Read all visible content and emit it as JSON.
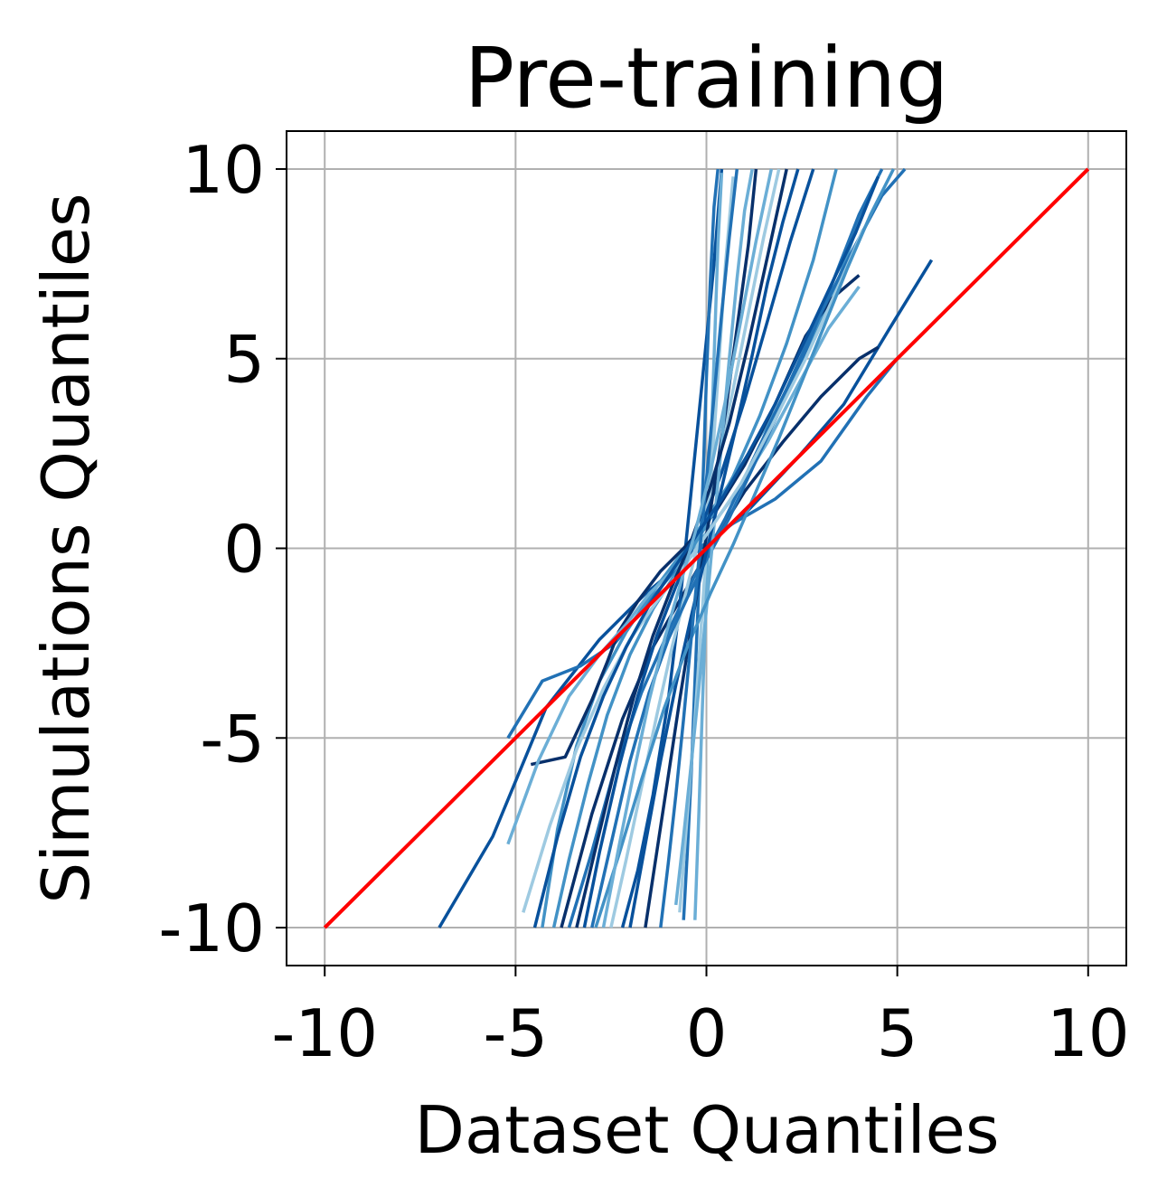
{
  "chart_data": {
    "type": "line",
    "title": "Pre-training",
    "xlabel": "Dataset Quantiles",
    "ylabel": "Simulations Quantiles",
    "xlim": [
      -11,
      11
    ],
    "ylim": [
      -11,
      11
    ],
    "xticks": [
      -10,
      -5,
      0,
      5,
      10
    ],
    "yticks": [
      -10,
      -5,
      0,
      5,
      10
    ],
    "xtick_labels": [
      "-10",
      "-5",
      "0",
      "5",
      "10"
    ],
    "ytick_labels": [
      "-10",
      "-5",
      "0",
      "5",
      "10"
    ],
    "grid": true,
    "legend": "none",
    "reference_line": {
      "x": [
        -10,
        10
      ],
      "y": [
        -10,
        10
      ],
      "color": "#ff0000"
    },
    "palette": [
      "#08306b",
      "#08519c",
      "#2171b5",
      "#4292c6",
      "#6baed6",
      "#9ecae1"
    ],
    "series": [
      {
        "color": "#08519c",
        "x": [
          -7.0,
          -5.6,
          -4.2,
          -2.8,
          -1.6,
          -0.4,
          1.0,
          2.4,
          3.6,
          4.8,
          5.9
        ],
        "y": [
          -10,
          -7.6,
          -4.2,
          -2.4,
          -1.2,
          -0.2,
          0.9,
          2.4,
          3.8,
          5.8,
          7.6
        ]
      },
      {
        "color": "#2171b5",
        "x": [
          -5.2,
          -4.3,
          -3.3,
          -2.4,
          -1.5,
          -0.6,
          0.6,
          1.8,
          3.0,
          4.2,
          5.0
        ],
        "y": [
          -5.0,
          -3.5,
          -3.1,
          -2.5,
          -1.4,
          -0.3,
          0.6,
          1.3,
          2.3,
          4.0,
          5.0
        ]
      },
      {
        "color": "#08306b",
        "x": [
          -3.8,
          -3.0,
          -2.2,
          -1.4,
          -0.6,
          0.2,
          1.0,
          2.0,
          3.0,
          4.0,
          4.5
        ],
        "y": [
          -10,
          -7.0,
          -4.5,
          -2.6,
          -1.2,
          0.2,
          1.5,
          2.8,
          4.0,
          5.0,
          5.3
        ]
      },
      {
        "color": "#08519c",
        "x": [
          -2.2,
          -1.8,
          -1.4,
          -1.0,
          -0.7,
          -0.4,
          -0.1,
          0.2,
          0.4
        ],
        "y": [
          -10,
          -8.5,
          -6.5,
          -4.0,
          -1.5,
          1.5,
          4.5,
          7.5,
          10
        ]
      },
      {
        "color": "#2171b5",
        "x": [
          -0.6,
          -0.5,
          -0.4,
          -0.3,
          -0.2,
          -0.1,
          0.0,
          0.1,
          0.2,
          0.3
        ],
        "y": [
          -9.8,
          -8.0,
          -6.0,
          -3.5,
          -1.0,
          1.5,
          4.5,
          7.0,
          9.0,
          10
        ]
      },
      {
        "color": "#6baed6",
        "x": [
          -0.3,
          -0.2,
          -0.1,
          0.0,
          0.1,
          0.2,
          0.3,
          0.4
        ],
        "y": [
          -9.8,
          -7.0,
          -4.0,
          -1.0,
          2.0,
          5.0,
          8.0,
          9.9
        ]
      },
      {
        "color": "#9ecae1",
        "x": [
          -0.7,
          -0.5,
          -0.3,
          -0.1,
          0.1,
          0.3,
          0.5,
          0.7
        ],
        "y": [
          -9.6,
          -7.0,
          -4.5,
          -1.5,
          1.5,
          4.5,
          7.5,
          9.8
        ]
      },
      {
        "color": "#4292c6",
        "x": [
          -4.3,
          -3.9,
          -3.4,
          -2.8,
          -2.1,
          -1.3,
          -0.4,
          0.8,
          1.8,
          2.7,
          3.5,
          4.2
        ],
        "y": [
          -10,
          -7.4,
          -5.2,
          -3.5,
          -2.2,
          -1.0,
          0.2,
          2.0,
          3.6,
          5.4,
          7.2,
          9.2
        ]
      },
      {
        "color": "#08306b",
        "x": [
          -4.6,
          -3.7,
          -3.0,
          -2.6,
          -2.3,
          -1.8,
          -1.2,
          -0.6,
          0.2,
          1.0,
          1.8,
          2.6,
          3.3,
          4.0
        ],
        "y": [
          -5.7,
          -5.5,
          -4.0,
          -3.0,
          -2.2,
          -1.4,
          -0.6,
          0.0,
          0.9,
          2.2,
          3.8,
          5.6,
          6.6,
          7.2
        ]
      },
      {
        "color": "#6baed6",
        "x": [
          -5.2,
          -4.4,
          -3.6,
          -2.8,
          -2.1,
          -1.5,
          -0.8,
          0.0,
          0.8,
          1.6,
          2.4,
          3.2,
          4.0
        ],
        "y": [
          -7.8,
          -5.6,
          -3.9,
          -2.8,
          -2.0,
          -1.2,
          -0.5,
          0.4,
          1.5,
          2.8,
          4.3,
          5.8,
          6.9
        ]
      },
      {
        "color": "#2171b5",
        "x": [
          -3.6,
          -3.0,
          -2.4,
          -1.7,
          -1.0,
          -0.3,
          0.5,
          1.3,
          2.1,
          2.9,
          3.8,
          4.6,
          5.2
        ],
        "y": [
          -10,
          -8.0,
          -5.8,
          -3.8,
          -2.2,
          -0.7,
          0.8,
          2.5,
          4.2,
          6.0,
          7.8,
          9.3,
          10
        ]
      },
      {
        "color": "#9ecae1",
        "x": [
          -2.5,
          -2.1,
          -1.7,
          -1.3,
          -0.9,
          -0.5,
          -0.1,
          0.3,
          0.7,
          1.1,
          1.5,
          1.9
        ],
        "y": [
          -10,
          -8.2,
          -6.3,
          -4.4,
          -2.6,
          -1.0,
          0.6,
          2.3,
          4.2,
          6.2,
          8.2,
          10
        ]
      },
      {
        "color": "#08519c",
        "x": [
          -3.2,
          -2.8,
          -2.3,
          -1.8,
          -1.3,
          -0.8,
          -0.2,
          0.4,
          1.0,
          1.6,
          2.2,
          2.8
        ],
        "y": [
          -10,
          -8.0,
          -5.8,
          -3.9,
          -2.3,
          -1.0,
          0.4,
          2.0,
          3.9,
          6.0,
          8.1,
          10
        ]
      },
      {
        "color": "#4292c6",
        "x": [
          -4.0,
          -3.6,
          -3.1,
          -2.6,
          -2.0,
          -1.4,
          -0.7,
          0.0,
          0.7,
          1.4,
          2.1,
          2.8,
          3.4
        ],
        "y": [
          -10,
          -8.2,
          -6.2,
          -4.4,
          -2.8,
          -1.6,
          -0.5,
          0.6,
          1.9,
          3.5,
          5.4,
          7.6,
          10
        ]
      },
      {
        "color": "#08306b",
        "x": [
          -1.6,
          -1.3,
          -1.0,
          -0.7,
          -0.4,
          -0.1,
          0.2,
          0.5,
          0.8,
          1.1,
          1.3
        ],
        "y": [
          -10,
          -8.0,
          -6.0,
          -4.0,
          -2.1,
          -0.3,
          1.6,
          3.6,
          5.8,
          8.0,
          10
        ]
      },
      {
        "color": "#2171b5",
        "x": [
          -3.0,
          -2.5,
          -2.0,
          -1.5,
          -1.0,
          -0.5,
          0.0,
          0.6,
          1.2,
          1.9,
          2.6,
          3.3,
          4.0,
          4.6
        ],
        "y": [
          -10,
          -7.8,
          -5.6,
          -3.8,
          -2.4,
          -1.3,
          -0.3,
          0.8,
          2.1,
          3.6,
          5.2,
          7.0,
          8.8,
          10
        ]
      },
      {
        "color": "#6baed6",
        "x": [
          -0.8,
          -0.6,
          -0.4,
          -0.2,
          0.0,
          0.2,
          0.4,
          0.6,
          0.8,
          1.0,
          1.2
        ],
        "y": [
          -9.4,
          -7.6,
          -5.7,
          -3.7,
          -1.6,
          0.6,
          2.8,
          5.0,
          7.1,
          8.9,
          10
        ]
      },
      {
        "color": "#08519c",
        "x": [
          -2.0,
          -1.6,
          -1.2,
          -0.8,
          -0.4,
          0.0,
          0.4,
          0.8,
          1.2,
          1.6,
          2.0,
          2.4
        ],
        "y": [
          -10,
          -7.8,
          -5.6,
          -3.6,
          -1.8,
          -0.1,
          1.6,
          3.3,
          5.1,
          7.0,
          8.6,
          10
        ]
      },
      {
        "color": "#9ecae1",
        "x": [
          -4.8,
          -4.1,
          -3.4,
          -2.7,
          -2.0,
          -1.3,
          -0.6,
          0.1,
          0.9,
          1.7,
          2.6,
          3.5,
          4.1
        ],
        "y": [
          -9.6,
          -7.3,
          -5.3,
          -3.7,
          -2.4,
          -1.4,
          -0.5,
          0.5,
          1.7,
          3.2,
          5.0,
          7.0,
          8.4
        ]
      },
      {
        "color": "#08306b",
        "x": [
          -3.4,
          -2.9,
          -2.4,
          -1.9,
          -1.4,
          -0.9,
          -0.4,
          0.1,
          0.6,
          1.1,
          1.6,
          2.1
        ],
        "y": [
          -10,
          -7.9,
          -5.8,
          -3.9,
          -2.3,
          -1.0,
          0.2,
          1.6,
          3.3,
          5.4,
          7.7,
          10
        ]
      },
      {
        "color": "#4292c6",
        "x": [
          -2.9,
          -2.3,
          -1.7,
          -1.1,
          -0.5,
          0.1,
          0.7,
          1.3,
          1.9,
          2.5,
          3.1,
          3.7,
          4.3,
          4.9
        ],
        "y": [
          -10,
          -8.1,
          -6.1,
          -4.2,
          -2.6,
          -1.2,
          0.1,
          1.5,
          2.9,
          4.4,
          5.9,
          7.4,
          8.8,
          10
        ]
      },
      {
        "color": "#2171b5",
        "x": [
          -1.2,
          -1.0,
          -0.8,
          -0.6,
          -0.4,
          -0.2,
          0.0,
          0.2,
          0.4,
          0.6,
          0.8
        ],
        "y": [
          -10,
          -8.3,
          -6.5,
          -4.5,
          -2.4,
          -0.3,
          1.8,
          4.0,
          6.2,
          8.2,
          10
        ]
      },
      {
        "color": "#08519c",
        "x": [
          -4.5,
          -3.9,
          -3.3,
          -2.7,
          -2.1,
          -1.5,
          -0.9,
          -0.3,
          0.4,
          1.1,
          1.8,
          2.5,
          3.2,
          3.9,
          4.5
        ],
        "y": [
          -10,
          -7.6,
          -5.5,
          -3.9,
          -2.6,
          -1.5,
          -0.6,
          0.3,
          1.3,
          2.5,
          3.8,
          5.3,
          6.8,
          8.3,
          9.8
        ]
      },
      {
        "color": "#6baed6",
        "x": [
          -2.7,
          -2.3,
          -1.9,
          -1.5,
          -1.1,
          -0.7,
          -0.3,
          0.1,
          0.5,
          0.9,
          1.3,
          1.7
        ],
        "y": [
          -10,
          -7.9,
          -5.9,
          -4.0,
          -2.4,
          -1.0,
          0.4,
          2.0,
          3.9,
          6.0,
          8.1,
          10
        ]
      }
    ]
  }
}
